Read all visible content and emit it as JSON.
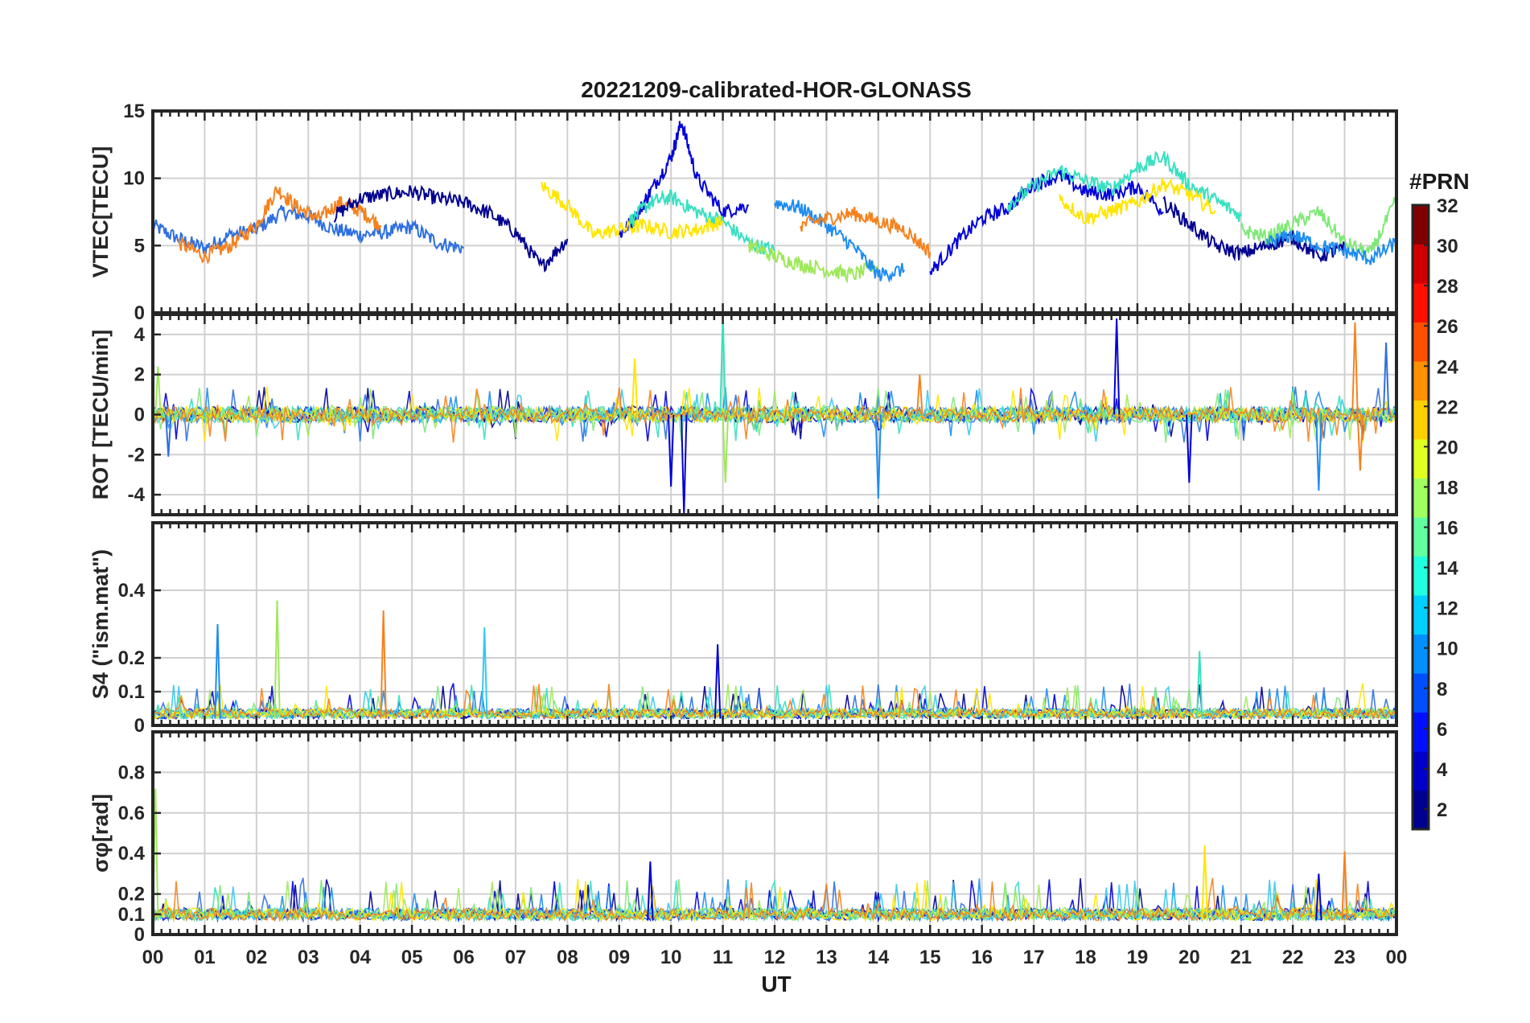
{
  "figure": {
    "title": "20221209-calibrated-HOR-GLONASS",
    "xlabel": "UT",
    "x_tick_labels": [
      "00",
      "01",
      "02",
      "03",
      "04",
      "05",
      "06",
      "07",
      "08",
      "09",
      "10",
      "11",
      "12",
      "13",
      "14",
      "15",
      "16",
      "17",
      "18",
      "19",
      "20",
      "21",
      "22",
      "23",
      "00"
    ]
  },
  "colorbar": {
    "title": "#PRN",
    "colormap": "jet",
    "range": [
      1,
      32
    ],
    "tick_labels": [
      "2",
      "4",
      "6",
      "8",
      "10",
      "12",
      "14",
      "16",
      "18",
      "20",
      "22",
      "24",
      "26",
      "28",
      "30",
      "32"
    ]
  },
  "chart_data": [
    {
      "type": "line",
      "panel": "vtec",
      "ylabel": "VTEC[TECU]",
      "xlim": [
        0,
        24
      ],
      "ylim": [
        0,
        15
      ],
      "yticks": [
        "0",
        "5",
        "10",
        "15"
      ],
      "grid": true,
      "series": [
        {
          "color": "#2f6fe0",
          "x": [
            0,
            0.5,
            1,
            1.5,
            2,
            2.5,
            3,
            3.5,
            4,
            4.5,
            5,
            5.5,
            6
          ],
          "y": [
            6.5,
            5.5,
            4.8,
            5.8,
            6.2,
            7.5,
            7.2,
            6.2,
            5.8,
            6.0,
            6.4,
            5.2,
            4.8
          ]
        },
        {
          "color": "#f5821f",
          "x": [
            0.5,
            1,
            1.5,
            2,
            2.4,
            2.8,
            3.2,
            3.6,
            4.0,
            4.4
          ],
          "y": [
            5.2,
            4.2,
            5.0,
            6.5,
            9.2,
            7.8,
            7.0,
            8.2,
            7.6,
            6.5
          ]
        },
        {
          "color": "#00008f",
          "x": [
            3.5,
            4,
            4.5,
            5,
            5.5,
            6,
            6.5,
            7,
            7.5,
            8
          ],
          "y": [
            7.2,
            8.5,
            8.8,
            9.0,
            8.5,
            8.2,
            7.4,
            6.0,
            3.4,
            5.5
          ]
        },
        {
          "color": "#0000d8",
          "x": [
            9,
            9.3,
            9.6,
            10,
            10.2,
            10.5,
            11,
            11.5
          ],
          "y": [
            5.8,
            7.0,
            9.0,
            11.5,
            14.2,
            10.0,
            7.5,
            8.0
          ]
        },
        {
          "color": "#36e0c0",
          "x": [
            9.2,
            9.6,
            10,
            10.5,
            11,
            11.5,
            12
          ],
          "y": [
            6.8,
            8.2,
            8.6,
            7.5,
            6.8,
            5.2,
            4.6
          ]
        },
        {
          "color": "#ffe600",
          "x": [
            7.5,
            8,
            8.5,
            9,
            9.5,
            10,
            10.5,
            11
          ],
          "y": [
            9.5,
            8.0,
            5.8,
            6.2,
            6.5,
            6.0,
            6.2,
            6.8
          ]
        },
        {
          "color": "#9ee85a",
          "x": [
            11.5,
            12,
            12.5,
            13,
            13.5,
            14
          ],
          "y": [
            5.0,
            4.2,
            3.6,
            3.2,
            2.8,
            3.5
          ]
        },
        {
          "color": "#1e8cf0",
          "x": [
            12,
            12.5,
            13,
            13.5,
            14,
            14.5
          ],
          "y": [
            8.2,
            7.8,
            6.5,
            5.0,
            2.8,
            3.2
          ]
        },
        {
          "color": "#f5821f",
          "x": [
            12.5,
            13,
            13.5,
            14,
            14.5,
            15
          ],
          "y": [
            6.5,
            7.0,
            7.4,
            6.8,
            6.2,
            4.5
          ]
        },
        {
          "color": "#0000d8",
          "x": [
            15,
            15.5,
            16,
            16.5,
            17,
            17.5,
            18,
            18.5,
            19,
            19.5
          ],
          "y": [
            3.0,
            5.2,
            7.0,
            7.8,
            9.6,
            10.2,
            9.0,
            8.8,
            9.4,
            7.5
          ]
        },
        {
          "color": "#36e0c0",
          "x": [
            16.5,
            17,
            17.5,
            18,
            18.5,
            19,
            19.5,
            20,
            20.5,
            21
          ],
          "y": [
            8.0,
            9.4,
            10.6,
            9.8,
            9.2,
            10.8,
            11.6,
            9.5,
            8.4,
            7.2
          ]
        },
        {
          "color": "#ffe600",
          "x": [
            17.5,
            18,
            18.5,
            19,
            19.5,
            20,
            20.5
          ],
          "y": [
            8.5,
            7.0,
            7.6,
            8.2,
            9.6,
            8.8,
            7.6
          ]
        },
        {
          "color": "#00008f",
          "x": [
            19.5,
            20,
            20.5,
            21,
            21.5,
            22,
            22.5,
            23
          ],
          "y": [
            8.2,
            6.6,
            5.0,
            4.4,
            5.0,
            5.6,
            4.2,
            4.8
          ]
        },
        {
          "color": "#80e879",
          "x": [
            21,
            21.5,
            22,
            22.5,
            23,
            23.5,
            24
          ],
          "y": [
            6.2,
            5.6,
            6.6,
            7.5,
            5.2,
            4.4,
            8.4
          ]
        },
        {
          "color": "#1e8cf0",
          "x": [
            21.5,
            22,
            22.5,
            23,
            23.5,
            24
          ],
          "y": [
            5.2,
            5.8,
            5.0,
            4.6,
            4.0,
            5.2
          ]
        }
      ]
    },
    {
      "type": "line",
      "panel": "rot",
      "ylabel": "ROT [TECU/min]",
      "xlim": [
        0,
        24
      ],
      "ylim": [
        -5,
        5
      ],
      "yticks": [
        "-4",
        "-2",
        "0",
        "2",
        "4"
      ],
      "grid": true,
      "noise_band_amplitude": 0.4,
      "spikes": [
        {
          "x": 0.1,
          "y": 2.4,
          "color": "#9ee85a"
        },
        {
          "x": 0.3,
          "y": -2.1,
          "color": "#2f6fe0"
        },
        {
          "x": 9.3,
          "y": 2.8,
          "color": "#ffe600"
        },
        {
          "x": 10.0,
          "y": -3.6,
          "color": "#0000d8"
        },
        {
          "x": 10.25,
          "y": -5.0,
          "color": "#0000d8"
        },
        {
          "x": 11.0,
          "y": 5.0,
          "color": "#36e0c0"
        },
        {
          "x": 11.05,
          "y": -3.4,
          "color": "#9ee85a"
        },
        {
          "x": 14.0,
          "y": -4.2,
          "color": "#1e8cf0"
        },
        {
          "x": 14.8,
          "y": 2.0,
          "color": "#f5821f"
        },
        {
          "x": 18.6,
          "y": 4.8,
          "color": "#0000d8"
        },
        {
          "x": 20.0,
          "y": -3.4,
          "color": "#0000d8"
        },
        {
          "x": 22.5,
          "y": -3.8,
          "color": "#1e8cf0"
        },
        {
          "x": 23.2,
          "y": 4.6,
          "color": "#f5821f"
        },
        {
          "x": 23.3,
          "y": -2.8,
          "color": "#f5821f"
        },
        {
          "x": 23.8,
          "y": 3.6,
          "color": "#2f6fe0"
        }
      ]
    },
    {
      "type": "line",
      "panel": "s4",
      "ylabel": "S4 (\"ism.mat\")",
      "xlim": [
        0,
        24
      ],
      "ylim": [
        0,
        0.6
      ],
      "yticks": [
        "0",
        "0.1",
        "0.2",
        "0.4"
      ],
      "grid": true,
      "spikes": [
        {
          "x": 1.25,
          "y": 0.3,
          "color": "#1e8cf0"
        },
        {
          "x": 2.4,
          "y": 0.37,
          "color": "#9ee85a"
        },
        {
          "x": 4.45,
          "y": 0.34,
          "color": "#f5821f"
        },
        {
          "x": 6.4,
          "y": 0.29,
          "color": "#36c8f0"
        },
        {
          "x": 10.9,
          "y": 0.24,
          "color": "#0000d8"
        },
        {
          "x": 20.2,
          "y": 0.22,
          "color": "#36e0c0"
        }
      ]
    },
    {
      "type": "line",
      "panel": "sigma_phi",
      "ylabel": "σφ[rad]",
      "xlim": [
        0,
        24
      ],
      "ylim": [
        0,
        1
      ],
      "yticks": [
        "0",
        "0.1",
        "0.2",
        "0.4",
        "0.6",
        "0.8"
      ],
      "grid": true,
      "spikes": [
        {
          "x": 0.05,
          "y": 0.72,
          "color": "#9ee85a"
        },
        {
          "x": 9.6,
          "y": 0.36,
          "color": "#0000d8"
        },
        {
          "x": 20.3,
          "y": 0.44,
          "color": "#ffe600"
        },
        {
          "x": 22.5,
          "y": 0.3,
          "color": "#0000d8"
        },
        {
          "x": 23.0,
          "y": 0.41,
          "color": "#f5821f"
        }
      ]
    }
  ]
}
